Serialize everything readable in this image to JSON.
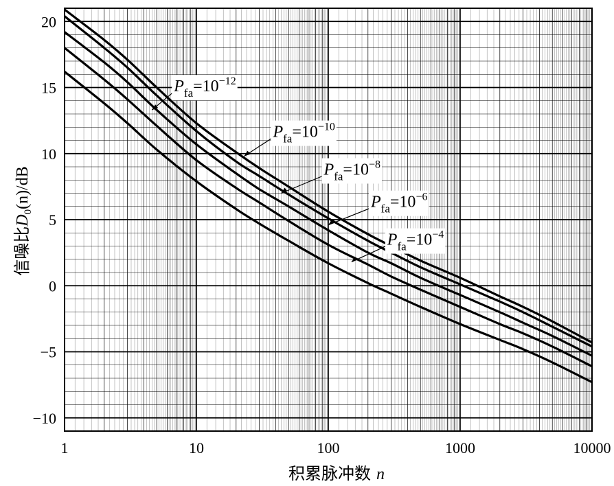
{
  "chart_data": {
    "type": "line",
    "x_scale": "log",
    "y_scale": "linear",
    "xlim": [
      1,
      10000
    ],
    "ylim": [
      -11,
      21
    ],
    "grid": "on",
    "title": "",
    "xlabel": {
      "text": "积累脉冲数",
      "variable": "n"
    },
    "ylabel": {
      "prefix": "信噪比",
      "symbol": "D",
      "subscript": "0",
      "arg": "(n)",
      "unit": "/dB"
    },
    "x_tick_labels": [
      "1",
      "10",
      "100",
      "1000",
      "10000"
    ],
    "x_tick_values": [
      1,
      10,
      100,
      1000,
      10000
    ],
    "y_tick_labels": [
      "20",
      "15",
      "10",
      "5",
      "0",
      "−5",
      "−10"
    ],
    "y_tick_values": [
      20,
      15,
      10,
      5,
      0,
      -5,
      -10
    ],
    "series": [
      {
        "label": {
          "symbol": "P",
          "subscript": "fa",
          "base": "=10",
          "exponent": "−12"
        },
        "anchor": {
          "x": 4.6,
          "y": 13.3
        },
        "points": [
          [
            1,
            20.9
          ],
          [
            2,
            18.6
          ],
          [
            3,
            17.1
          ],
          [
            5,
            15.0
          ],
          [
            10,
            12.3
          ],
          [
            20,
            10.1
          ],
          [
            30,
            8.9
          ],
          [
            50,
            7.5
          ],
          [
            100,
            5.6
          ],
          [
            200,
            3.9
          ],
          [
            300,
            3.0
          ],
          [
            500,
            1.9
          ],
          [
            1000,
            0.6
          ],
          [
            2000,
            -0.8
          ],
          [
            3000,
            -1.6
          ],
          [
            5000,
            -2.7
          ],
          [
            10000,
            -4.3
          ]
        ]
      },
      {
        "label": {
          "symbol": "P",
          "subscript": "fa",
          "base": "=10",
          "exponent": "−10"
        },
        "anchor": {
          "x": 23,
          "y": 9.8
        },
        "points": [
          [
            1,
            20.4
          ],
          [
            2,
            18.0
          ],
          [
            3,
            16.5
          ],
          [
            5,
            14.4
          ],
          [
            10,
            11.7
          ],
          [
            20,
            9.4
          ],
          [
            30,
            8.3
          ],
          [
            50,
            6.9
          ],
          [
            100,
            5.1
          ],
          [
            200,
            3.4
          ],
          [
            300,
            2.5
          ],
          [
            500,
            1.4
          ],
          [
            1000,
            0.1
          ],
          [
            2000,
            -1.2
          ],
          [
            3000,
            -2.0
          ],
          [
            5000,
            -3.1
          ],
          [
            10000,
            -4.6
          ]
        ]
      },
      {
        "label": {
          "symbol": "P",
          "subscript": "fa",
          "base": "=10",
          "exponent": "−8"
        },
        "anchor": {
          "x": 44,
          "y": 7.0
        },
        "points": [
          [
            1,
            19.2
          ],
          [
            2,
            16.9
          ],
          [
            3,
            15.4
          ],
          [
            5,
            13.3
          ],
          [
            10,
            10.7
          ],
          [
            20,
            8.5
          ],
          [
            30,
            7.3
          ],
          [
            50,
            6.0
          ],
          [
            100,
            4.2
          ],
          [
            200,
            2.5
          ],
          [
            300,
            1.7
          ],
          [
            500,
            0.6
          ],
          [
            1000,
            -0.7
          ],
          [
            2000,
            -2.0
          ],
          [
            3000,
            -2.8
          ],
          [
            5000,
            -3.8
          ],
          [
            10000,
            -5.3
          ]
        ]
      },
      {
        "label": {
          "symbol": "P",
          "subscript": "fa",
          "base": "=10",
          "exponent": "−6"
        },
        "anchor": {
          "x": 100,
          "y": 4.6
        },
        "points": [
          [
            1,
            18.0
          ],
          [
            2,
            15.6
          ],
          [
            3,
            14.1
          ],
          [
            5,
            12.1
          ],
          [
            10,
            9.5
          ],
          [
            20,
            7.4
          ],
          [
            30,
            6.3
          ],
          [
            50,
            4.9
          ],
          [
            100,
            3.1
          ],
          [
            200,
            1.6
          ],
          [
            300,
            0.7
          ],
          [
            500,
            -0.3
          ],
          [
            1000,
            -1.6
          ],
          [
            2000,
            -2.9
          ],
          [
            3000,
            -3.6
          ],
          [
            5000,
            -4.6
          ],
          [
            10000,
            -6.1
          ]
        ]
      },
      {
        "label": {
          "symbol": "P",
          "subscript": "fa",
          "base": "=10",
          "exponent": "−4"
        },
        "anchor": {
          "x": 150,
          "y": 1.8
        },
        "points": [
          [
            1,
            16.2
          ],
          [
            2,
            13.8
          ],
          [
            3,
            12.3
          ],
          [
            5,
            10.3
          ],
          [
            10,
            7.9
          ],
          [
            20,
            5.8
          ],
          [
            30,
            4.7
          ],
          [
            50,
            3.4
          ],
          [
            100,
            1.7
          ],
          [
            200,
            0.2
          ],
          [
            300,
            -0.6
          ],
          [
            500,
            -1.6
          ],
          [
            1000,
            -2.9
          ],
          [
            2000,
            -4.1
          ],
          [
            3000,
            -4.8
          ],
          [
            5000,
            -5.8
          ],
          [
            10000,
            -7.3
          ]
        ]
      }
    ]
  }
}
